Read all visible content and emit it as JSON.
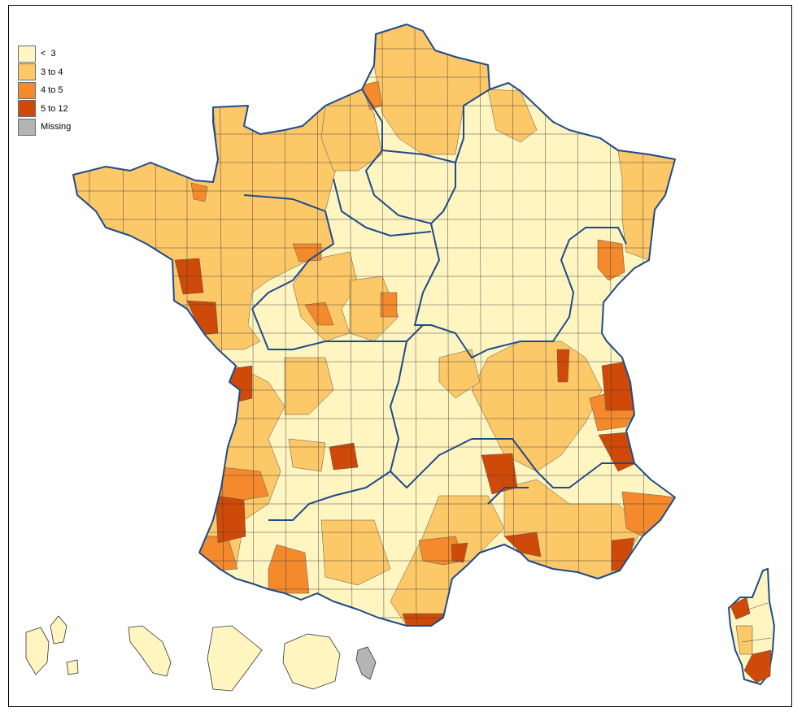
{
  "legend": {
    "items": [
      {
        "label": "<  3",
        "color": "#fff5c0"
      },
      {
        "label": "3 to 4",
        "color": "#fcc868"
      },
      {
        "label": "4 to 5",
        "color": "#f58a2c"
      },
      {
        "label": "5 to 12",
        "color": "#cf4a08"
      },
      {
        "label": "Missing",
        "color": "#b4b4b4"
      }
    ]
  },
  "colors": {
    "region_border": "#1f4a8c",
    "dept_border": "#3a3a3a"
  },
  "map": {
    "regions": [
      {
        "name": "",
        "class": 0
      }
    ]
  }
}
